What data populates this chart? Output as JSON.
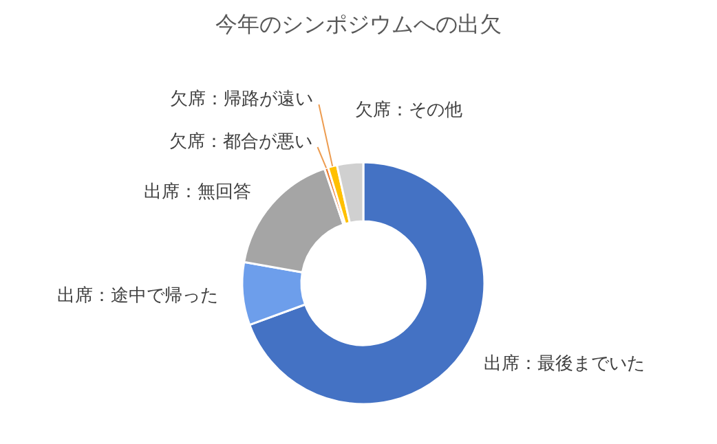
{
  "chart_data": {
    "type": "donut",
    "title": "今年のシンポジウムへの出欠",
    "categories": [
      "出席：最後までいた",
      "出席：途中で帰った",
      "出席：無回答",
      "欠席：都合が悪い",
      "欠席：帰路が遠い",
      "欠席：その他"
    ],
    "values": [
      69.4,
      8.4,
      17,
      0.5,
      1.2,
      3.5
    ],
    "colors": [
      "#4472c4",
      "#6d9eeb",
      "#a5a5a5",
      "#ed7d31",
      "#ffc000",
      "#d0d0d0"
    ]
  }
}
